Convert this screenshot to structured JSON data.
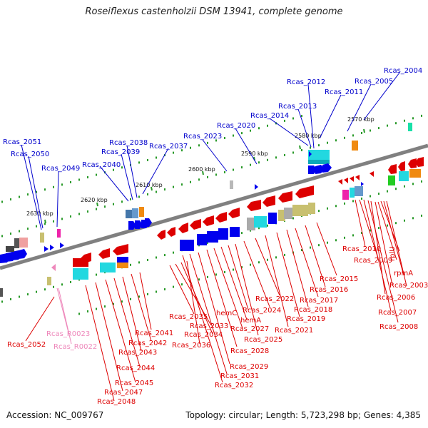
{
  "title": "Roseiflexus castenholzii DSM 13941, complete genome",
  "footer": {
    "accession": "Accession: NC_009767",
    "info": "Topology: circular; Length: 5,723,298 bp; Genes: 4,385"
  },
  "colors": {
    "forward_label": "#0000cc",
    "reverse_label": "#dd0000",
    "rna_label": "#ee88bb",
    "backbone": "#808080",
    "scale_tick": "#2a9a2a"
  },
  "scale_marks": [
    {
      "text": "2570 kbp",
      "tick": "2570"
    },
    {
      "text": "2580 kbp",
      "tick": "2580"
    },
    {
      "text": "2590 kbp",
      "tick": "2590"
    },
    {
      "text": "2600 kbp",
      "tick": "2600"
    },
    {
      "text": "2610 kbp",
      "tick": "2610"
    },
    {
      "text": "2620 kbp",
      "tick": "2620"
    },
    {
      "text": "2630 kbp",
      "tick": "2630"
    }
  ],
  "top_labels": [
    "Rcas_2004",
    "Rcas_2005",
    "Rcas_2011",
    "Rcas_2012",
    "Rcas_2013",
    "Rcas_2014",
    "Rcas_2020",
    "Rcas_2023",
    "Rcas_2037",
    "Rcas_2038",
    "Rcas_2039",
    "Rcas_2040",
    "Rcas_2049",
    "Rcas_2050",
    "Rcas_2051"
  ],
  "bottom_labels": [
    "Rcas_2010",
    "Rcas_2009",
    "rplU",
    "rpmA",
    "Rcas_2003",
    "Rcas_2006",
    "Rcas_2007",
    "Rcas_2008",
    "Rcas_2015",
    "Rcas_2016",
    "Rcas_2017",
    "Rcas_2018",
    "Rcas_2019",
    "Rcas_2021",
    "Rcas_2022",
    "Rcas_2024",
    "hemC",
    "hemA",
    "Rcas_2027",
    "Rcas_2025",
    "Rcas_2028",
    "Rcas_2029",
    "Rcas_2031",
    "Rcas_2032",
    "Rcas_2035",
    "Rcas_2033",
    "Rcas_2034",
    "Rcas_2036",
    "Rcas_2041",
    "Rcas_2042",
    "Rcas_2043",
    "Rcas_2044",
    "Rcas_2045",
    "Rcas_2047",
    "Rcas_2048",
    "Rcas_2052"
  ],
  "rna_labels": [
    "Rcas_R0023",
    "Rcas_R0022"
  ]
}
